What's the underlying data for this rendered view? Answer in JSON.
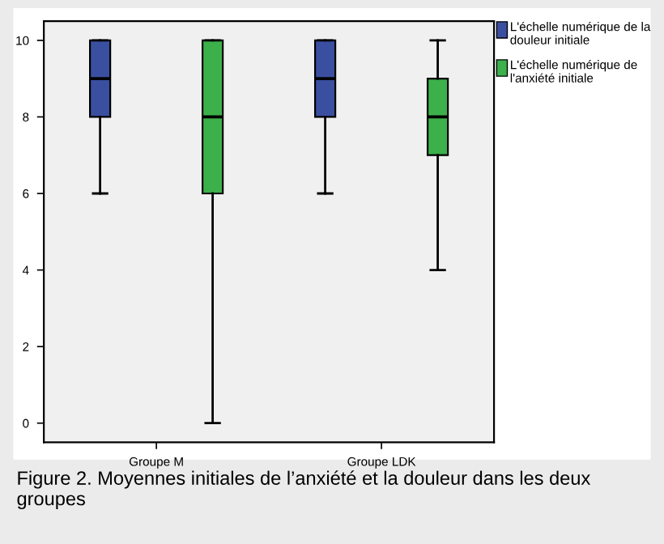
{
  "chart_data": {
    "type": "box",
    "categories": [
      "Groupe M",
      "Groupe LDK"
    ],
    "series": [
      {
        "name": "L'échelle numérique de la douleur initiale",
        "color": "#3a4fa0",
        "boxes": [
          {
            "low": 6,
            "q1": 8,
            "median": 9,
            "q3": 10,
            "high": 10
          },
          {
            "low": 6,
            "q1": 8,
            "median": 9,
            "q3": 10,
            "high": 10
          }
        ]
      },
      {
        "name": "L'échelle numérique de l'anxiété initiale",
        "color": "#3cb04a",
        "boxes": [
          {
            "low": 0,
            "q1": 6,
            "median": 8,
            "q3": 10,
            "high": 10
          },
          {
            "low": 4,
            "q1": 7,
            "median": 8,
            "q3": 9,
            "high": 10
          }
        ]
      }
    ],
    "ylim": [
      -0.5,
      10.5
    ],
    "yticks": [
      0,
      2,
      4,
      6,
      8,
      10
    ],
    "grid": false,
    "legend": "top right",
    "annotations": [
      "Figure 2. Moyennes initiales de l’anxiété et la douleur dans les deux groupes"
    ]
  }
}
